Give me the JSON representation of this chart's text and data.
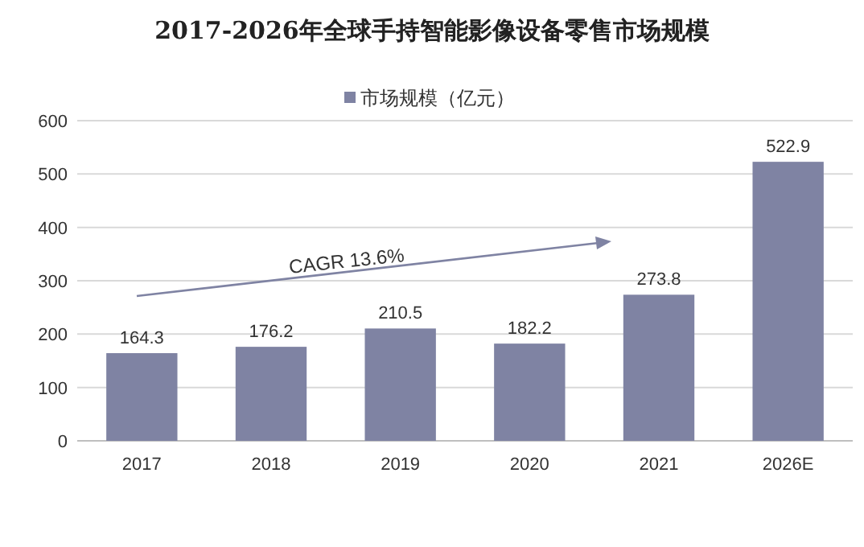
{
  "chart_data": {
    "type": "bar",
    "title": "2017-2026年全球手持智能影像设备零售市场规模",
    "categories": [
      "2017",
      "2018",
      "2019",
      "2020",
      "2021",
      "2026E"
    ],
    "series": [
      {
        "name": "市场规模（亿元）",
        "color": "#7f83a3",
        "values": [
          164.3,
          176.2,
          210.5,
          182.2,
          273.8,
          522.9
        ]
      }
    ],
    "ylim": [
      0,
      600
    ],
    "yticks": [
      0,
      100,
      200,
      300,
      400,
      500,
      600
    ],
    "grid": "y",
    "legend": "top",
    "data_labels": true,
    "annotations": [
      "CAGR 13.6%"
    ]
  }
}
